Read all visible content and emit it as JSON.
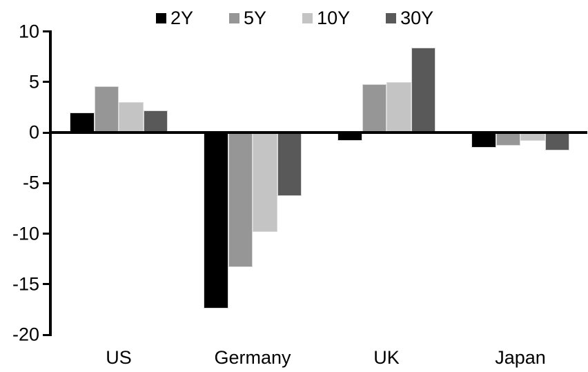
{
  "chart_data": {
    "type": "bar",
    "title": "",
    "xlabel": "",
    "ylabel": "",
    "categories": [
      "US",
      "Germany",
      "UK",
      "Japan"
    ],
    "series": [
      {
        "name": "2Y",
        "color": "#000000",
        "values": [
          2.0,
          -17.4,
          -0.8,
          -1.5
        ]
      },
      {
        "name": "5Y",
        "color": "#969696",
        "values": [
          4.6,
          -13.3,
          4.8,
          -1.3
        ]
      },
      {
        "name": "10Y",
        "color": "#c4c4c4",
        "values": [
          3.0,
          -9.8,
          5.0,
          -0.8
        ]
      },
      {
        "name": "30Y",
        "color": "#595959",
        "values": [
          2.2,
          -6.3,
          8.4,
          -1.8
        ]
      }
    ],
    "ylim": [
      -20,
      10
    ],
    "yticks": [
      10,
      5,
      0,
      -5,
      -10,
      -15,
      -20
    ],
    "grid": false,
    "legend_position": "top",
    "axis_color": "#000000",
    "bar_outline_color": "#d9d9d9"
  }
}
